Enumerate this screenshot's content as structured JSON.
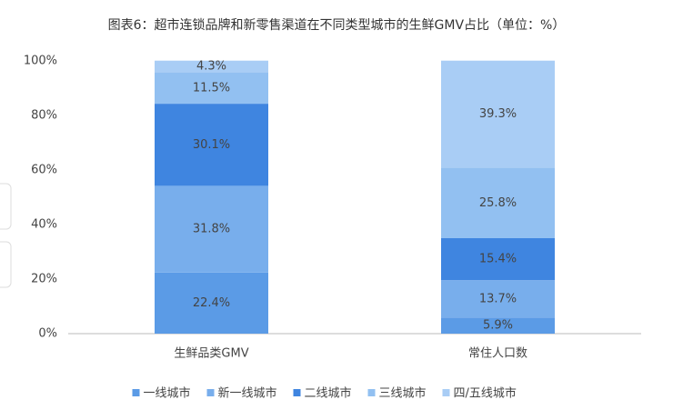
{
  "chart_data": {
    "type": "stacked-bar",
    "title": "图表6：超市连锁品牌和新零售渠道在不同类型城市的生鲜GMV占比（单位：%）",
    "categories": [
      "生鲜品类GMV",
      "常住人口数"
    ],
    "series": [
      {
        "name": "一线城市",
        "color": "#5b9be6",
        "values": [
          22.4,
          5.9
        ],
        "value_labels": [
          "22.4%",
          "5.9%"
        ]
      },
      {
        "name": "新一线城市",
        "color": "#78aeec",
        "values": [
          31.8,
          13.7
        ],
        "value_labels": [
          "31.8%",
          "13.7%"
        ]
      },
      {
        "name": "二线城市",
        "color": "#3f85e0",
        "values": [
          30.1,
          15.4
        ],
        "value_labels": [
          "30.1%",
          "15.4%"
        ]
      },
      {
        "name": "三线城市",
        "color": "#92c0f1",
        "values": [
          11.5,
          25.8
        ],
        "value_labels": [
          "11.5%",
          "25.8%"
        ]
      },
      {
        "name": "四/五线城市",
        "color": "#a9cdf5",
        "values": [
          4.3,
          39.3
        ],
        "value_labels": [
          "4.3%",
          "39.3%"
        ]
      }
    ],
    "ylim": [
      0,
      100
    ],
    "yticks": [
      {
        "value": 0,
        "label": "0%"
      },
      {
        "value": 20,
        "label": "20%"
      },
      {
        "value": 40,
        "label": "40%"
      },
      {
        "value": 60,
        "label": "60%"
      },
      {
        "value": 80,
        "label": "80%"
      },
      {
        "value": 100,
        "label": "100%"
      }
    ],
    "grid": false,
    "legend": "bottom"
  }
}
